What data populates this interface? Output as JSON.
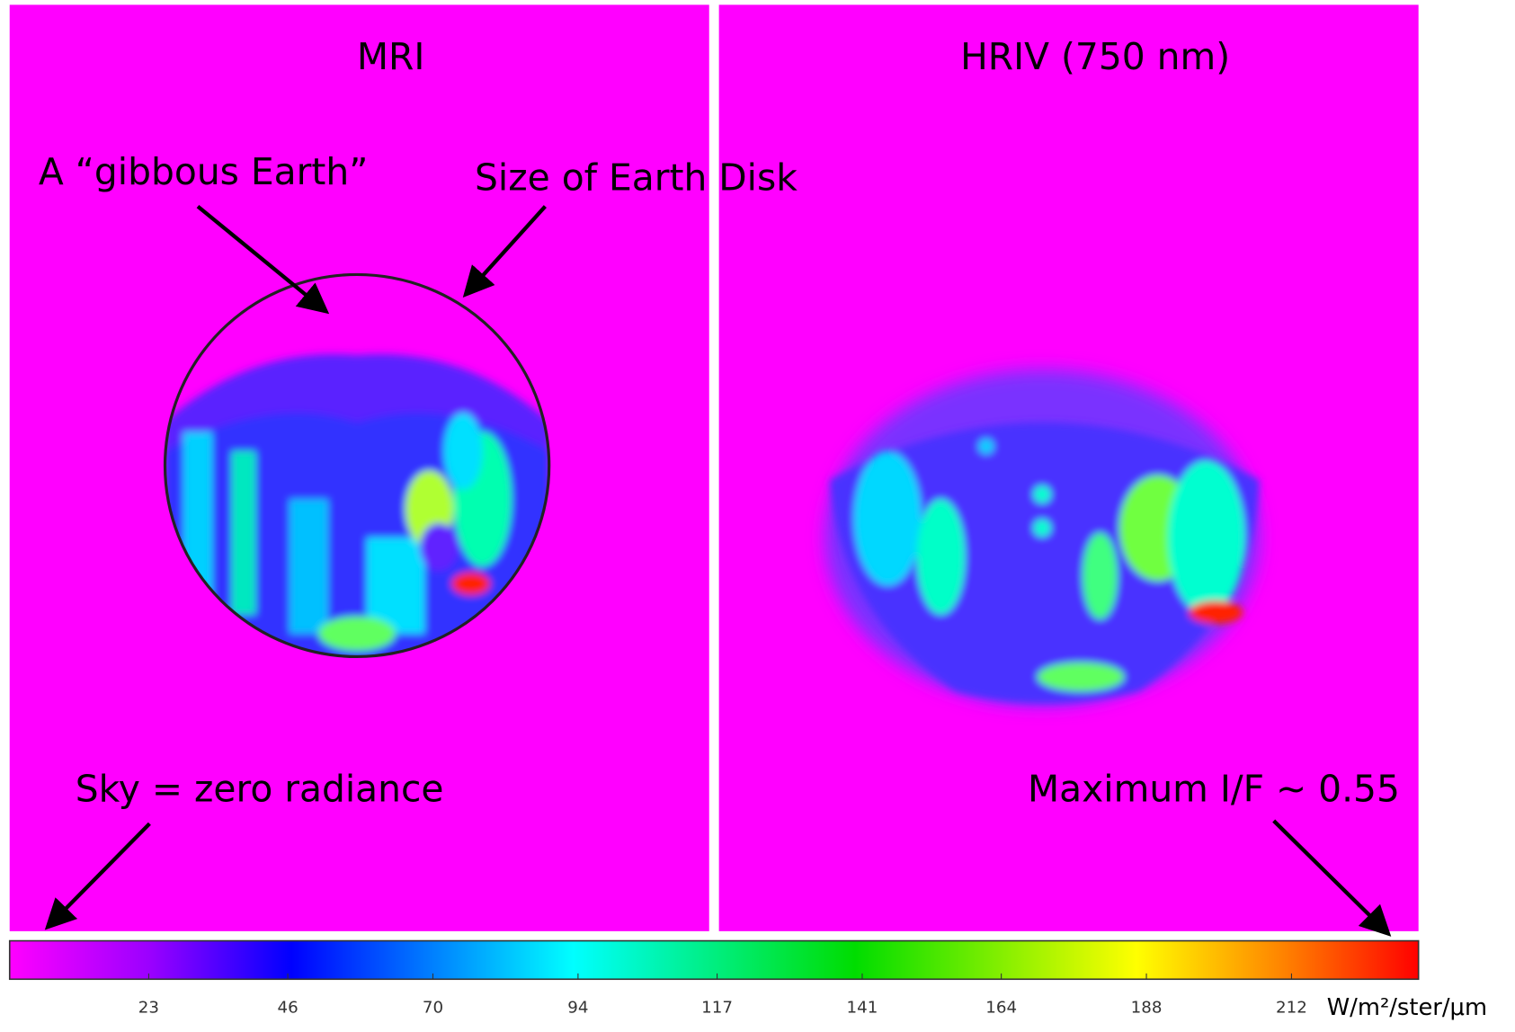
{
  "panels": [
    {
      "title": "MRI"
    },
    {
      "title": "HRIV (750 nm)"
    }
  ],
  "annotations": [
    {
      "text": "A “gibbous Earth”"
    },
    {
      "text": "Size of Earth Disk"
    },
    {
      "text": "Sky = zero radiance"
    },
    {
      "text": "Maximum I/F ~ 0.55"
    }
  ],
  "colorbar": {
    "lim": [
      0,
      233
    ],
    "ticks": [
      23,
      46,
      70,
      94,
      117,
      141,
      164,
      188,
      212
    ],
    "unit": "W/m²/ster/μm"
  }
}
